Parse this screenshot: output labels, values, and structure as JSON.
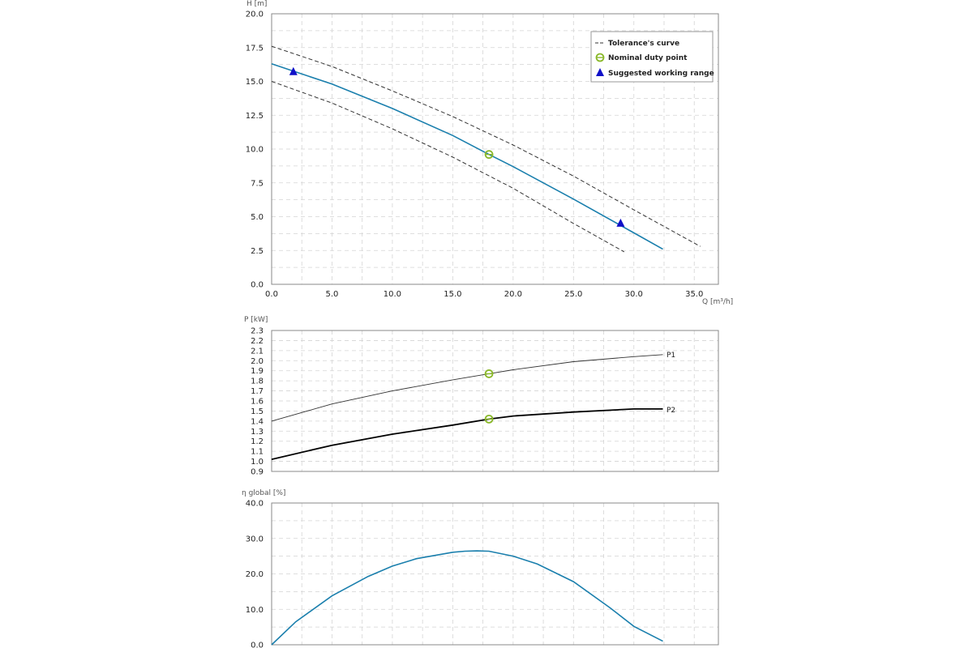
{
  "colors": {
    "curve": "#1a7fad",
    "duty_point": "#8ab82a",
    "working_range": "#1010c8",
    "tolerance": "#333333",
    "p1": "#333333",
    "p2": "#000000",
    "grid": "#d4d4d4",
    "axis": "#888888"
  },
  "chart_data": [
    {
      "id": "head",
      "type": "line",
      "ylabel": "H [m]",
      "xlabel": "Q [m³/h]",
      "xlim": [
        0,
        37
      ],
      "ylim": [
        0,
        20
      ],
      "xticks": [
        0,
        5,
        10,
        15,
        20,
        25,
        30,
        35
      ],
      "xtick_labels": [
        "0.0",
        "5.0",
        "10.0",
        "15.0",
        "20.0",
        "25.0",
        "30.0",
        "35.0"
      ],
      "yticks": [
        0,
        2.5,
        5,
        7.5,
        10,
        12.5,
        15,
        17.5,
        20
      ],
      "ytick_labels": [
        "0.0",
        "2.5",
        "5.0",
        "7.5",
        "10.0",
        "12.5",
        "15.0",
        "17.5",
        "20.0"
      ],
      "series": [
        {
          "name": "H",
          "style": "solid",
          "x": [
            0,
            5,
            10,
            15,
            18,
            20,
            25,
            30,
            32.4
          ],
          "y": [
            16.3,
            14.8,
            13.0,
            11.0,
            9.6,
            8.7,
            6.3,
            3.8,
            2.6
          ]
        },
        {
          "name": "Tolerance upper",
          "style": "dashed",
          "x": [
            0,
            5,
            10,
            15,
            20,
            25,
            30,
            35.5
          ],
          "y": [
            17.6,
            16.1,
            14.3,
            12.4,
            10.3,
            8.0,
            5.5,
            2.8
          ]
        },
        {
          "name": "Tolerance lower",
          "style": "dashed",
          "x": [
            0,
            5,
            10,
            15,
            20,
            25,
            29.2
          ],
          "y": [
            15.0,
            13.4,
            11.5,
            9.4,
            7.1,
            4.5,
            2.4
          ]
        }
      ],
      "duty_point": {
        "x": 18.0,
        "y": 9.6
      },
      "working_range": [
        {
          "x": 1.8,
          "y": 15.7
        },
        {
          "x": 28.9,
          "y": 4.5
        }
      ],
      "legend": {
        "position": "top-right",
        "items": [
          "Tolerance's curve",
          "Nominal duty point",
          "Suggested working range"
        ]
      }
    },
    {
      "id": "power",
      "type": "line",
      "ylabel": "P [kW]",
      "xlim": [
        0,
        37
      ],
      "ylim": [
        0.9,
        2.3
      ],
      "xticks": [
        0,
        5,
        10,
        15,
        20,
        25,
        30,
        35
      ],
      "yticks": [
        0.9,
        1.0,
        1.1,
        1.2,
        1.3,
        1.4,
        1.5,
        1.6,
        1.7,
        1.8,
        1.9,
        2.0,
        2.1,
        2.2,
        2.3
      ],
      "ytick_labels": [
        "0.9",
        "1.0",
        "1.1",
        "1.2",
        "1.3",
        "1.4",
        "1.5",
        "1.6",
        "1.7",
        "1.8",
        "1.9",
        "2.0",
        "2.1",
        "2.2",
        "2.3"
      ],
      "series": [
        {
          "name": "P1",
          "style": "thin",
          "x": [
            0,
            5,
            10,
            15,
            18,
            20,
            25,
            30,
            32.4
          ],
          "y": [
            1.4,
            1.57,
            1.7,
            1.81,
            1.87,
            1.91,
            1.99,
            2.04,
            2.06
          ]
        },
        {
          "name": "P2",
          "style": "thick",
          "x": [
            0,
            5,
            10,
            15,
            18,
            20,
            25,
            30,
            32.4
          ],
          "y": [
            1.02,
            1.16,
            1.27,
            1.36,
            1.42,
            1.45,
            1.49,
            1.52,
            1.52
          ]
        }
      ],
      "duty_points": [
        {
          "x": 18.0,
          "y": 1.87
        },
        {
          "x": 18.0,
          "y": 1.42
        }
      ]
    },
    {
      "id": "efficiency",
      "type": "line",
      "ylabel": "η global [%]",
      "xlim": [
        0,
        37
      ],
      "ylim": [
        0,
        40
      ],
      "xticks": [
        0,
        5,
        10,
        15,
        20,
        25,
        30,
        35
      ],
      "yticks": [
        0,
        10,
        20,
        30,
        40
      ],
      "ytick_labels": [
        "0.0",
        "10.0",
        "20.0",
        "30.0",
        "40.0"
      ],
      "series": [
        {
          "name": "eta",
          "style": "solid",
          "x": [
            0,
            2,
            5,
            8,
            10,
            12,
            15,
            16,
            17,
            18,
            20,
            22,
            25,
            28,
            30,
            32.4
          ],
          "y": [
            0,
            6.5,
            13.8,
            19.3,
            22.2,
            24.3,
            26.1,
            26.4,
            26.5,
            26.4,
            25.0,
            22.8,
            17.8,
            10.5,
            5.2,
            1.0
          ]
        }
      ]
    }
  ]
}
